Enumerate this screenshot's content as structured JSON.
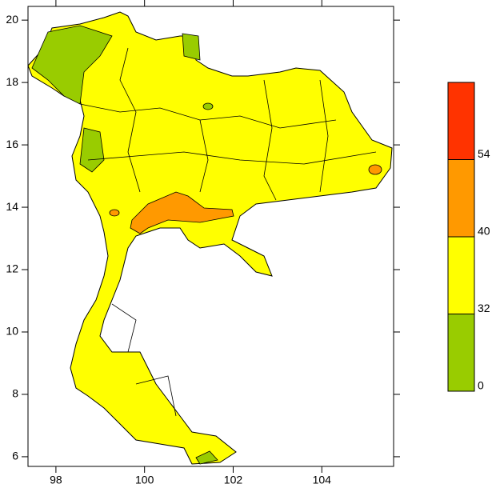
{
  "chart_data": {
    "type": "contour-map",
    "xlim": [
      97.37,
      105.62
    ],
    "ylim": [
      5.69,
      20.44
    ],
    "xticks": [
      98,
      100,
      102,
      104
    ],
    "yticks": [
      6,
      8,
      10,
      12,
      14,
      16,
      18,
      20
    ],
    "legend": {
      "levels": [
        0,
        32,
        40,
        54
      ],
      "colors": [
        "#99cc00",
        "#ffff00",
        "#ff9900",
        "#ff3300"
      ]
    }
  }
}
